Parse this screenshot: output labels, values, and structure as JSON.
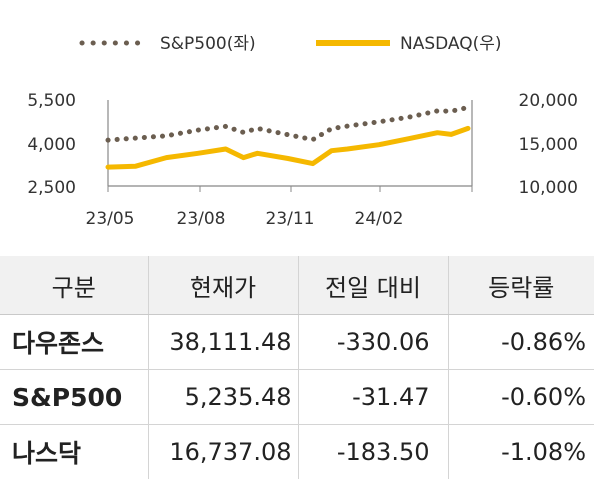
{
  "chart_data": {
    "type": "line",
    "legend": [
      {
        "name": "S&P500(좌)",
        "color": "#6b5e50",
        "style": "dotted"
      },
      {
        "name": "NASDAQ(우)",
        "color": "#f5b800",
        "style": "solid"
      }
    ],
    "legend_position": "top",
    "x_ticks": [
      "23/05",
      "23/08",
      "23/11",
      "24/02"
    ],
    "x_range": [
      "2023-04-03",
      "2024-04-05"
    ],
    "y_left": {
      "ticks": [
        "5,500",
        "4,000",
        "2,500"
      ],
      "range": [
        2500,
        5500
      ]
    },
    "y_right": {
      "ticks": [
        "20,000",
        "15,000",
        "10,000"
      ],
      "range": [
        10000,
        20000
      ]
    },
    "grid": false,
    "series": [
      {
        "name": "S&P500(좌)",
        "x": [
          "2023-04-03",
          "2023-05-01",
          "2023-06-01",
          "2023-07-03",
          "2023-07-31",
          "2023-08-18",
          "2023-09-01",
          "2023-10-02",
          "2023-10-27",
          "2023-11-15",
          "2023-12-01",
          "2024-01-02",
          "2024-02-01",
          "2024-03-01",
          "2024-03-15",
          "2024-04-01"
        ],
        "y": [
          4100,
          4170,
          4250,
          4450,
          4580,
          4370,
          4510,
          4290,
          4120,
          4500,
          4590,
          4740,
          4900,
          5120,
          5110,
          5240
        ]
      },
      {
        "name": "NASDAQ(우)",
        "x": [
          "2023-04-03",
          "2023-05-01",
          "2023-06-01",
          "2023-07-03",
          "2023-07-31",
          "2023-08-18",
          "2023-09-01",
          "2023-10-02",
          "2023-10-27",
          "2023-11-15",
          "2023-12-01",
          "2024-01-02",
          "2024-02-01",
          "2024-03-01",
          "2024-03-15",
          "2024-04-01"
        ],
        "y": [
          12200,
          12300,
          13300,
          13800,
          14300,
          13300,
          13800,
          13200,
          12600,
          14100,
          14300,
          14800,
          15500,
          16200,
          16000,
          16700
        ]
      }
    ]
  },
  "table": {
    "headers": [
      "구분",
      "현재가",
      "전일 대비",
      "등락률"
    ],
    "rows": [
      {
        "name": "다우존스",
        "price": "38,111.48",
        "change": "-330.06",
        "rate": "-0.86%"
      },
      {
        "name": "S&P500",
        "price": "5,235.48",
        "change": "-31.47",
        "rate": "-0.60%"
      },
      {
        "name": "나스닥",
        "price": "16,737.08",
        "change": "-183.50",
        "rate": "-1.08%"
      }
    ]
  }
}
